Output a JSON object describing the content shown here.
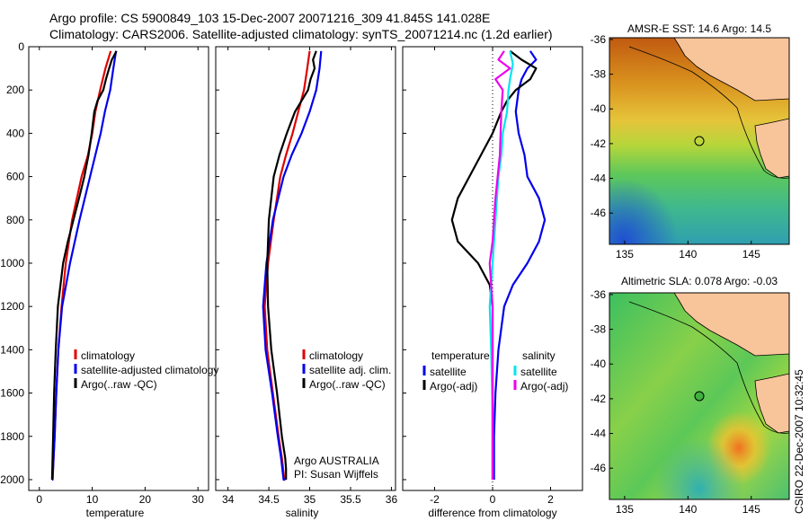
{
  "header": {
    "line1": "Argo profile: CS 5900849_103 15-Dec-2007 20071216_309 41.845S 141.028E",
    "line2": "Climatology: CARS2006. Satellite-adjusted climatology: synTS_20071214.nc (1.2d earlier)"
  },
  "credit": "CSIRO 22-Dec-2007 10:32:45",
  "colors": {
    "climatology": "#e00000",
    "satellite": "#0000ee",
    "argo": "#000000",
    "salinity_satellite": "#00e5ee",
    "salinity_argo": "#ee00ee",
    "land": "#f8c59a"
  },
  "chart_data": [
    {
      "type": "line",
      "xlabel": "temperature",
      "ylim": [
        2050,
        0
      ],
      "xlim": [
        -2,
        32
      ],
      "xticks": [
        "0",
        "10",
        "20",
        "30"
      ],
      "yticks": [
        "0",
        "200",
        "400",
        "600",
        "800",
        "1000",
        "1200",
        "1400",
        "1600",
        "1800",
        "2000"
      ],
      "legend": [
        "climatology",
        "satellite-adjusted climatology",
        "Argo(..raw -QC)"
      ],
      "series": [
        {
          "name": "climatology",
          "color": "#e00000",
          "x": [
            13.5,
            12.5,
            11.5,
            10.6,
            10.0,
            9.2,
            8.0,
            6.2,
            5.0,
            4.2,
            3.6,
            3.2,
            2.9,
            2.7,
            2.5,
            2.4
          ],
          "y": [
            20,
            100,
            200,
            300,
            400,
            500,
            600,
            800,
            1000,
            1200,
            1400,
            1600,
            1800,
            1900,
            2000,
            2000
          ]
        },
        {
          "name": "satellite-adjusted climatology",
          "color": "#0000ee",
          "x": [
            14.5,
            14.0,
            13.4,
            12.4,
            11.6,
            10.6,
            9.6,
            7.6,
            5.8,
            4.3,
            3.6,
            3.2,
            2.9,
            2.7,
            2.5,
            2.4
          ],
          "y": [
            20,
            100,
            200,
            300,
            400,
            500,
            600,
            800,
            1000,
            1200,
            1400,
            1600,
            1800,
            1900,
            2000,
            2000
          ]
        },
        {
          "name": "Argo(..raw -QC)",
          "color": "#000000",
          "x": [
            14.6,
            13.7,
            13.2,
            12.6,
            12.1,
            11.0,
            10.4,
            9.9,
            9.3,
            8.5,
            7.5,
            5.4,
            4.5,
            4.0,
            3.5,
            3.1,
            2.8,
            2.6,
            2.5,
            2.4
          ],
          "y": [
            20,
            60,
            100,
            150,
            200,
            250,
            300,
            400,
            500,
            600,
            700,
            900,
            1000,
            1100,
            1200,
            1400,
            1600,
            1800,
            1900,
            2000
          ]
        }
      ]
    },
    {
      "type": "line",
      "xlabel": "salinity",
      "ylim": [
        2050,
        0
      ],
      "xlim": [
        33.85,
        36.05
      ],
      "xticks": [
        "34",
        "34.5",
        "35",
        "35.5",
        "36"
      ],
      "legend": [
        "climatology",
        "satellite adj. clim.",
        "Argo(..raw -QC)"
      ],
      "annotations": [
        "Argo AUSTRALIA",
        "PI: Susan Wijffels"
      ],
      "series": [
        {
          "name": "climatology",
          "color": "#e00000",
          "x": [
            35.0,
            34.97,
            34.93,
            34.86,
            34.79,
            34.71,
            34.64,
            34.56,
            34.49,
            34.45,
            34.48,
            34.55,
            34.62,
            34.66,
            34.69,
            34.7
          ],
          "y": [
            20,
            100,
            200,
            300,
            400,
            500,
            600,
            800,
            1000,
            1200,
            1400,
            1600,
            1800,
            1900,
            2000,
            2000
          ]
        },
        {
          "name": "satellite adj. clim.",
          "color": "#0000ee",
          "x": [
            35.14,
            35.12,
            35.08,
            35.0,
            34.9,
            34.78,
            34.68,
            34.55,
            34.47,
            34.43,
            34.46,
            34.54,
            34.61,
            34.65,
            34.68,
            34.7
          ],
          "y": [
            20,
            100,
            200,
            300,
            400,
            500,
            600,
            800,
            1000,
            1200,
            1400,
            1600,
            1800,
            1900,
            2000,
            2000
          ]
        },
        {
          "name": "Argo(..raw -QC)",
          "color": "#000000",
          "x": [
            35.08,
            35.04,
            35.06,
            35.01,
            34.98,
            34.9,
            34.82,
            34.72,
            34.63,
            34.56,
            34.5,
            34.48,
            34.49,
            34.53,
            34.6,
            34.66,
            34.7,
            34.71,
            34.71
          ],
          "y": [
            20,
            60,
            100,
            150,
            200,
            250,
            300,
            400,
            500,
            600,
            800,
            1000,
            1200,
            1400,
            1600,
            1800,
            1900,
            1950,
            2000
          ]
        }
      ]
    },
    {
      "type": "line",
      "xlabel": "difference from climatology",
      "ylim": [
        2050,
        0
      ],
      "xlim": [
        -3.1,
        3.1
      ],
      "xticks": [
        "-2",
        "0",
        "2"
      ],
      "legend_groups": [
        {
          "heading": "temperature",
          "items": [
            "satellite",
            "Argo(-adj)"
          ]
        },
        {
          "heading": "salinity",
          "items": [
            "satellite",
            "Argo(-adj)"
          ]
        }
      ],
      "series": [
        {
          "name": "temperature satellite",
          "color": "#0000ee",
          "x": [
            1.3,
            1.5,
            1.2,
            1.0,
            0.9,
            0.8,
            0.9,
            1.1,
            1.2,
            1.6,
            1.8,
            1.6,
            1.2,
            0.7,
            0.4,
            0.2,
            0.1,
            0.05,
            0.05
          ],
          "y": [
            20,
            60,
            100,
            150,
            200,
            300,
            400,
            500,
            600,
            700,
            800,
            900,
            1000,
            1100,
            1200,
            1400,
            1600,
            1800,
            2000
          ]
        },
        {
          "name": "temperature Argo(-adj)",
          "color": "#000000",
          "x": [
            0.6,
            1.0,
            1.5,
            1.3,
            0.8,
            0.5,
            0.3,
            0.0,
            -0.4,
            -0.8,
            -1.2,
            -1.4,
            -1.2,
            -0.5,
            -0.1,
            0.0,
            0.0,
            0.0,
            0.0
          ],
          "y": [
            20,
            60,
            100,
            150,
            200,
            250,
            300,
            400,
            500,
            600,
            700,
            800,
            900,
            1000,
            1100,
            1200,
            1400,
            1700,
            2000
          ]
        },
        {
          "name": "salinity satellite",
          "color": "#00e5ee",
          "x": [
            0.6,
            0.7,
            0.6,
            0.55,
            0.5,
            0.35,
            0.3,
            0.2,
            0.1,
            0.0,
            -0.1,
            -0.05,
            0.0,
            0.0
          ],
          "y": [
            20,
            80,
            150,
            200,
            300,
            400,
            500,
            600,
            800,
            1000,
            1200,
            1400,
            1700,
            2000
          ]
        },
        {
          "name": "salinity Argo(-adj)",
          "color": "#ee00ee",
          "x": [
            0.4,
            0.2,
            0.6,
            0.1,
            0.35,
            0.3,
            0.25,
            0.1,
            0.0,
            -0.1,
            0.0,
            0.0,
            0.0
          ],
          "y": [
            20,
            60,
            100,
            150,
            200,
            300,
            500,
            700,
            900,
            1000,
            1200,
            1600,
            2000
          ]
        }
      ]
    }
  ],
  "maps": [
    {
      "title": "AMSR-E SST: 14.6  Argo: 14.5",
      "xticks": [
        "135",
        "140",
        "145"
      ],
      "yticks": [
        "-36",
        "-38",
        "-40",
        "-42",
        "-44",
        "-46"
      ],
      "float_lon": 141.028,
      "float_lat": -41.845
    },
    {
      "title": "Altimetric SLA: 0.078  Argo: -0.03",
      "xticks": [
        "135",
        "140",
        "145"
      ],
      "yticks": [
        "-36",
        "-38",
        "-40",
        "-42",
        "-44",
        "-46"
      ],
      "float_lon": 141.028,
      "float_lat": -41.845
    }
  ]
}
